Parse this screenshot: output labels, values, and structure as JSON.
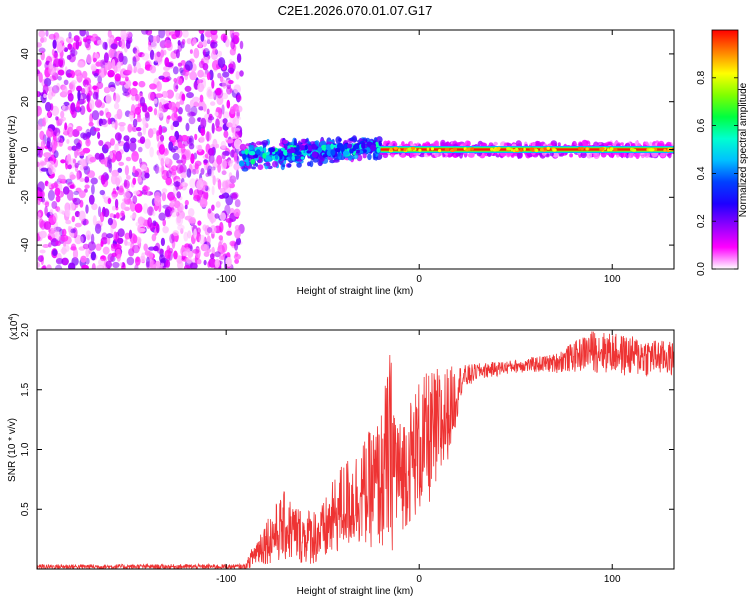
{
  "title": "C2E1.2026.070.01.07.G17",
  "chart_data": [
    {
      "type": "heatmap",
      "title": "",
      "xlabel": "Height of straight line (km)",
      "ylabel": "Frequency (Hz)",
      "xlim": [
        -198,
        132
      ],
      "ylim": [
        -50,
        50
      ],
      "xticks": [
        -100,
        0,
        100
      ],
      "xtick_labels": [
        "-100",
        "0",
        "100"
      ],
      "yticks": [
        -40,
        -20,
        0,
        20,
        40
      ],
      "ytick_labels": [
        "-40",
        "-20",
        "0",
        "20",
        "40"
      ],
      "colorbar": {
        "label": "Normalized spectral amplitude",
        "range": [
          0,
          1
        ],
        "ticks": [
          0.0,
          0.2,
          0.4,
          0.6,
          0.8
        ],
        "tick_labels": [
          "0.0",
          "0.2",
          "0.4",
          "0.6",
          "0.8"
        ],
        "colormap": [
          "#ffffff",
          "#ff00ff",
          "#9000ff",
          "#1e00ff",
          "#0040ff",
          "#00c0ff",
          "#00ffd0",
          "#00ff40",
          "#80ff00",
          "#ffff00",
          "#ff8000",
          "#ff0000"
        ]
      },
      "regions": [
        {
          "description": "broadband noise",
          "x_range": [
            -198,
            -92
          ],
          "freq_range": [
            -50,
            50
          ],
          "amplitude_range": [
            0.0,
            0.2
          ]
        },
        {
          "description": "emerging signal",
          "x_range": [
            -92,
            -20
          ],
          "freq_center_start": -3,
          "freq_center_end": 1,
          "amplitude_range": [
            0.2,
            0.6
          ]
        },
        {
          "description": "steady tone",
          "x_range": [
            -20,
            132
          ],
          "freq_center": 0,
          "amplitude_range": [
            0.8,
            1.0
          ]
        }
      ],
      "grid": false
    },
    {
      "type": "line",
      "title": "",
      "xlabel": "Height of straight line (km)",
      "ylabel": "SNR (10 * v/v)",
      "y_multiplier_label": "(x10",
      "y_multiplier_exp": "4",
      "xlim": [
        -198,
        132
      ],
      "ylim": [
        0,
        2.0
      ],
      "xticks": [
        -100,
        0,
        100
      ],
      "xtick_labels": [
        "-100",
        "0",
        "100"
      ],
      "yticks": [
        0.5,
        1.0,
        1.5,
        2.0
      ],
      "ytick_labels": [
        "0.5",
        "1.0",
        "1.5",
        "2.0"
      ],
      "color": "#ee3333",
      "grid": false,
      "envelope": [
        {
          "x": -198,
          "y_min": 0.0,
          "y_max": 0.04
        },
        {
          "x": -90,
          "y_min": 0.0,
          "y_max": 0.04
        },
        {
          "x": -85,
          "y_min": 0.02,
          "y_max": 0.25
        },
        {
          "x": -80,
          "y_min": 0.04,
          "y_max": 0.42
        },
        {
          "x": -70,
          "y_min": 0.06,
          "y_max": 0.65
        },
        {
          "x": -60,
          "y_min": 0.04,
          "y_max": 0.5
        },
        {
          "x": -50,
          "y_min": 0.03,
          "y_max": 0.55
        },
        {
          "x": -40,
          "y_min": 0.15,
          "y_max": 0.9
        },
        {
          "x": -30,
          "y_min": 0.2,
          "y_max": 1.05
        },
        {
          "x": -20,
          "y_min": 0.15,
          "y_max": 1.3
        },
        {
          "x": -15,
          "y_min": 0.1,
          "y_max": 1.85
        },
        {
          "x": -10,
          "y_min": 0.3,
          "y_max": 1.25
        },
        {
          "x": 0,
          "y_min": 0.45,
          "y_max": 1.6
        },
        {
          "x": 10,
          "y_min": 0.6,
          "y_max": 1.7
        },
        {
          "x": 20,
          "y_min": 1.25,
          "y_max": 1.7
        },
        {
          "x": 30,
          "y_min": 1.5,
          "y_max": 1.72
        },
        {
          "x": 50,
          "y_min": 1.58,
          "y_max": 1.75
        },
        {
          "x": 70,
          "y_min": 1.55,
          "y_max": 1.8
        },
        {
          "x": 90,
          "y_min": 1.45,
          "y_max": 2.0
        },
        {
          "x": 110,
          "y_min": 1.4,
          "y_max": 1.95
        },
        {
          "x": 132,
          "y_min": 1.45,
          "y_max": 1.9
        }
      ]
    }
  ]
}
